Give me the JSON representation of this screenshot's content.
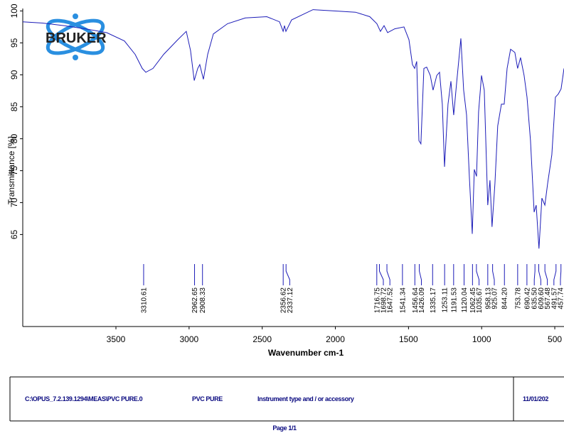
{
  "chart_data": {
    "type": "line",
    "logo": "BRUKER",
    "xlabel": "Wavenumber cm-1",
    "ylabel": "Transmittance [%]",
    "color": "#1c1cb8",
    "xlim": [
      4137,
      437
    ],
    "ylim": [
      50.6,
      100.6
    ],
    "xticks": [
      3500,
      3000,
      2500,
      2000,
      1500,
      1000,
      500
    ],
    "yticks": [
      65,
      70,
      75,
      80,
      85,
      90,
      95,
      100
    ],
    "x": [
      4137,
      4001,
      3855,
      3709,
      3563,
      3442,
      3369,
      3320,
      3296,
      3247,
      3174,
      3077,
      3019,
      2990,
      2965,
      2941,
      2927,
      2902,
      2873,
      2834,
      2737,
      2615,
      2469,
      2382,
      2357,
      2348,
      2338,
      2299,
      2153,
      2008,
      1862,
      1765,
      1716,
      1692,
      1667,
      1643,
      1594,
      1531,
      1497,
      1473,
      1458,
      1444,
      1429,
      1415,
      1395,
      1376,
      1351,
      1332,
      1307,
      1288,
      1269,
      1254,
      1230,
      1210,
      1191,
      1171,
      1142,
      1123,
      1103,
      1084,
      1064,
      1050,
      1035,
      1021,
      1001,
      982,
      958,
      943,
      929,
      909,
      890,
      865,
      846,
      826,
      802,
      773,
      754,
      734,
      710,
      690,
      666,
      641,
      627,
      608,
      588,
      568,
      549,
      520,
      496,
      476,
      457,
      437
    ],
    "values": [
      98.3,
      98.1,
      97.7,
      97.2,
      96.6,
      95.3,
      93.2,
      91.0,
      90.4,
      91.0,
      93.2,
      95.5,
      96.8,
      93.8,
      89.1,
      91.0,
      91.6,
      89.3,
      93.2,
      96.4,
      98.0,
      98.9,
      99.1,
      98.3,
      96.8,
      97.7,
      96.8,
      98.6,
      100.2,
      100.0,
      99.8,
      99.1,
      98.0,
      96.8,
      97.7,
      96.6,
      97.2,
      97.5,
      95.5,
      91.6,
      91.0,
      92.1,
      79.7,
      79.2,
      91.0,
      91.2,
      89.9,
      87.6,
      89.9,
      90.4,
      85.4,
      75.6,
      85.4,
      89.0,
      83.7,
      88.7,
      95.7,
      87.6,
      83.7,
      74.1,
      65.1,
      75.2,
      74.1,
      84.2,
      89.9,
      87.6,
      69.6,
      73.5,
      66.2,
      73.0,
      82.0,
      85.4,
      85.4,
      91.0,
      94.0,
      93.5,
      91.0,
      92.7,
      89.9,
      86.5,
      79.7,
      68.5,
      69.6,
      62.8,
      70.7,
      69.6,
      73.0,
      77.5,
      86.5,
      87.0,
      87.8,
      91.0
    ],
    "peaks": [
      3310.61,
      2962.65,
      2908.33,
      2356.62,
      2337.12,
      1716.75,
      1698.72,
      1647.52,
      1541.34,
      1456.64,
      1426.09,
      1335.17,
      1253.11,
      1191.53,
      1120.04,
      1062.45,
      1035.67,
      958.13,
      925.07,
      {
        "value": 844.2,
        "label": "844.20"
      },
      753.78,
      690.42,
      {
        "value": 635.5,
        "label": "635.50"
      },
      {
        "value": 609.6,
        "label": "609.60"
      },
      567.48,
      491.57,
      457.74
    ]
  },
  "footer": {
    "path": "C:\\OPUS_7.2.139.1294\\MEAS\\PVC PURE.0",
    "sample": "PVC PURE",
    "instrument": "Instrument type and / or accessory",
    "date": "11/01/202",
    "page": "Page 1/1"
  }
}
